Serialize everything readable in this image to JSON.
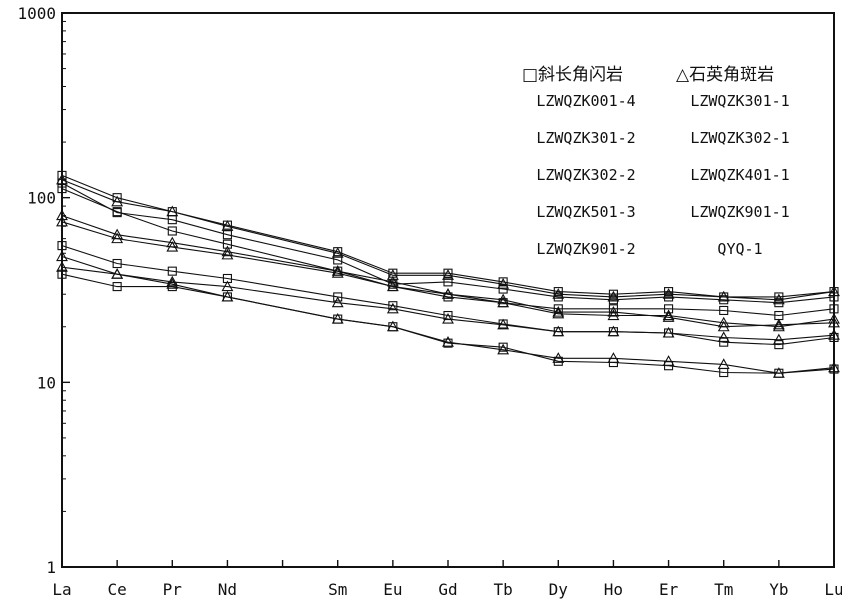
{
  "chart_data": {
    "type": "line",
    "yscale": "log",
    "ylim": [
      1,
      1000
    ],
    "y_ticks": [
      "1",
      "10",
      "100",
      "1000"
    ],
    "categories": [
      "La",
      "Ce",
      "Pr",
      "Nd",
      "",
      "Sm",
      "Eu",
      "Gd",
      "Tb",
      "Dy",
      "Ho",
      "Er",
      "Tm",
      "Yb",
      "Lu"
    ],
    "grid": false,
    "legend": {
      "position": "top-right",
      "groups": [
        {
          "label": "□斜长角闪岩",
          "marker": "square",
          "entries": [
            "LZWQZK001-4",
            "LZWQZK301-2",
            "LZWQZK302-2",
            "LZWQZK501-3",
            "LZWQZK901-2"
          ]
        },
        {
          "label": "△石英角斑岩",
          "marker": "triangle",
          "entries": [
            "LZWQZK301-1",
            "LZWQZK302-1",
            "LZWQZK401-1",
            "LZWQZK901-1",
            "QYQ-1"
          ]
        }
      ]
    },
    "series": [
      {
        "marker": "square",
        "values": [
          132,
          100,
          84,
          71,
          null,
          51,
          39,
          39,
          35,
          31,
          30,
          31,
          29,
          29,
          31
        ]
      },
      {
        "marker": "square",
        "values": [
          120,
          83,
          76,
          63,
          null,
          46,
          34,
          35,
          32,
          29,
          28,
          29,
          28,
          27,
          29
        ]
      },
      {
        "marker": "square",
        "values": [
          112,
          84,
          66,
          56,
          null,
          40,
          33,
          29,
          27,
          25,
          25,
          25,
          24.5,
          23,
          25
        ]
      },
      {
        "marker": "square",
        "values": [
          55,
          44,
          40,
          36.5,
          null,
          29,
          26,
          23,
          20.7,
          18.8,
          18.8,
          18.5,
          16.5,
          16,
          17.5
        ]
      },
      {
        "marker": "square",
        "values": [
          38.5,
          33,
          33,
          29,
          null,
          22,
          20,
          16.3,
          15.5,
          13,
          12.8,
          12.3,
          11.3,
          11.2,
          11.8
        ]
      },
      {
        "marker": "triangle",
        "values": [
          125,
          95,
          84,
          70,
          null,
          50,
          38,
          38,
          34,
          30,
          29,
          30,
          29,
          28,
          31
        ]
      },
      {
        "marker": "triangle",
        "values": [
          80,
          63,
          57,
          51,
          null,
          40,
          35,
          30,
          27,
          23.5,
          23,
          23,
          21,
          20,
          22
        ]
      },
      {
        "marker": "triangle",
        "values": [
          74,
          60,
          54,
          49,
          null,
          39,
          33,
          30,
          28,
          24,
          24,
          22.5,
          20,
          20.5,
          21
        ]
      },
      {
        "marker": "triangle",
        "values": [
          48,
          38.5,
          35,
          33,
          null,
          27,
          25,
          22,
          20.5,
          18.8,
          18.8,
          18.5,
          17.5,
          17,
          18
        ]
      },
      {
        "marker": "triangle",
        "values": [
          42,
          38.5,
          34,
          29,
          null,
          22,
          20,
          16.5,
          15,
          13.5,
          13.5,
          13,
          12.5,
          11.2,
          12
        ]
      }
    ]
  }
}
